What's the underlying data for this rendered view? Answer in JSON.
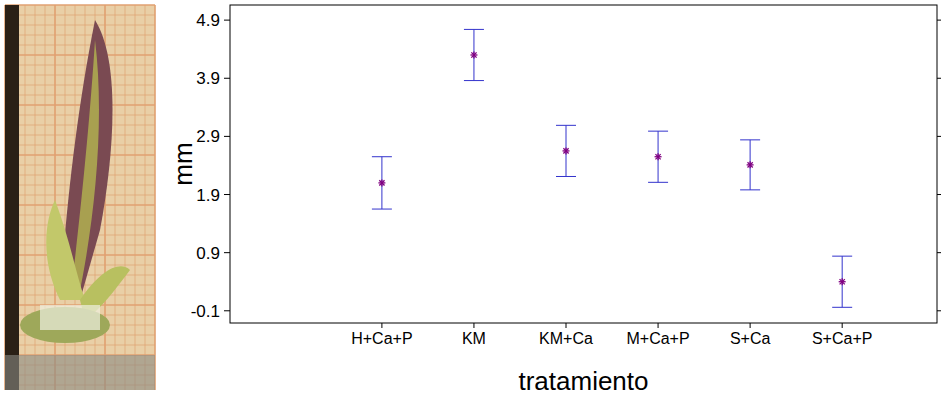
{
  "chart_data": {
    "type": "errorbar",
    "x_label": "tratamiento",
    "y_label": "mm",
    "categories": [
      "H+Ca+P",
      "KM",
      "KM+Ca",
      "M+Ca+P",
      "S+Ca",
      "S+Ca+P"
    ],
    "values": [
      2.1,
      4.3,
      2.65,
      2.55,
      2.41,
      0.4
    ],
    "error": [
      0.45,
      0.44,
      0.44,
      0.44,
      0.43,
      0.44
    ],
    "color": "#3333cc",
    "marker": "asterisk",
    "ylim": [
      -0.31,
      5.16
    ],
    "yticks": [
      -0.1,
      0.9,
      1.9,
      2.9,
      3.9,
      4.9
    ],
    "grid": false
  }
}
